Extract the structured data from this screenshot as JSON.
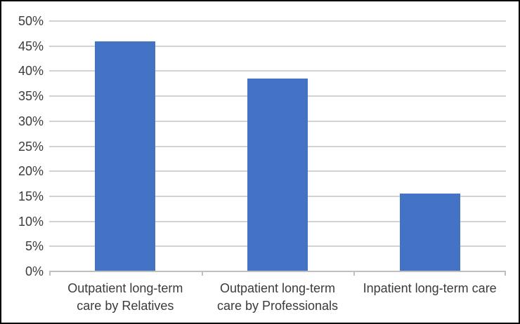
{
  "chart_data": {
    "type": "bar",
    "title": "",
    "categories": [
      "Outpatient long-term care by Relatives",
      "Outpatient long-term care by Professionals",
      "Inpatient long-term care"
    ],
    "category_lines": [
      [
        "Outpatient long-term",
        "care by Relatives"
      ],
      [
        "Outpatient long-term",
        "care by Professionals"
      ],
      [
        "Inpatient long-term care"
      ]
    ],
    "values": [
      46,
      38.5,
      15.5
    ],
    "unit": "%",
    "ylim": [
      0,
      50
    ],
    "y_tick_step": 5,
    "y_tick_labels": [
      "0%",
      "5%",
      "10%",
      "15%",
      "20%",
      "25%",
      "30%",
      "35%",
      "40%",
      "45%",
      "50%"
    ],
    "grid": true,
    "legend": false,
    "colors": {
      "bar": "#4472C4",
      "gridline": "#D2D2D2",
      "axis": "#BFBFBF",
      "text": "#3B3B3B",
      "background": "#FFFFFF",
      "border": "#000000"
    }
  }
}
